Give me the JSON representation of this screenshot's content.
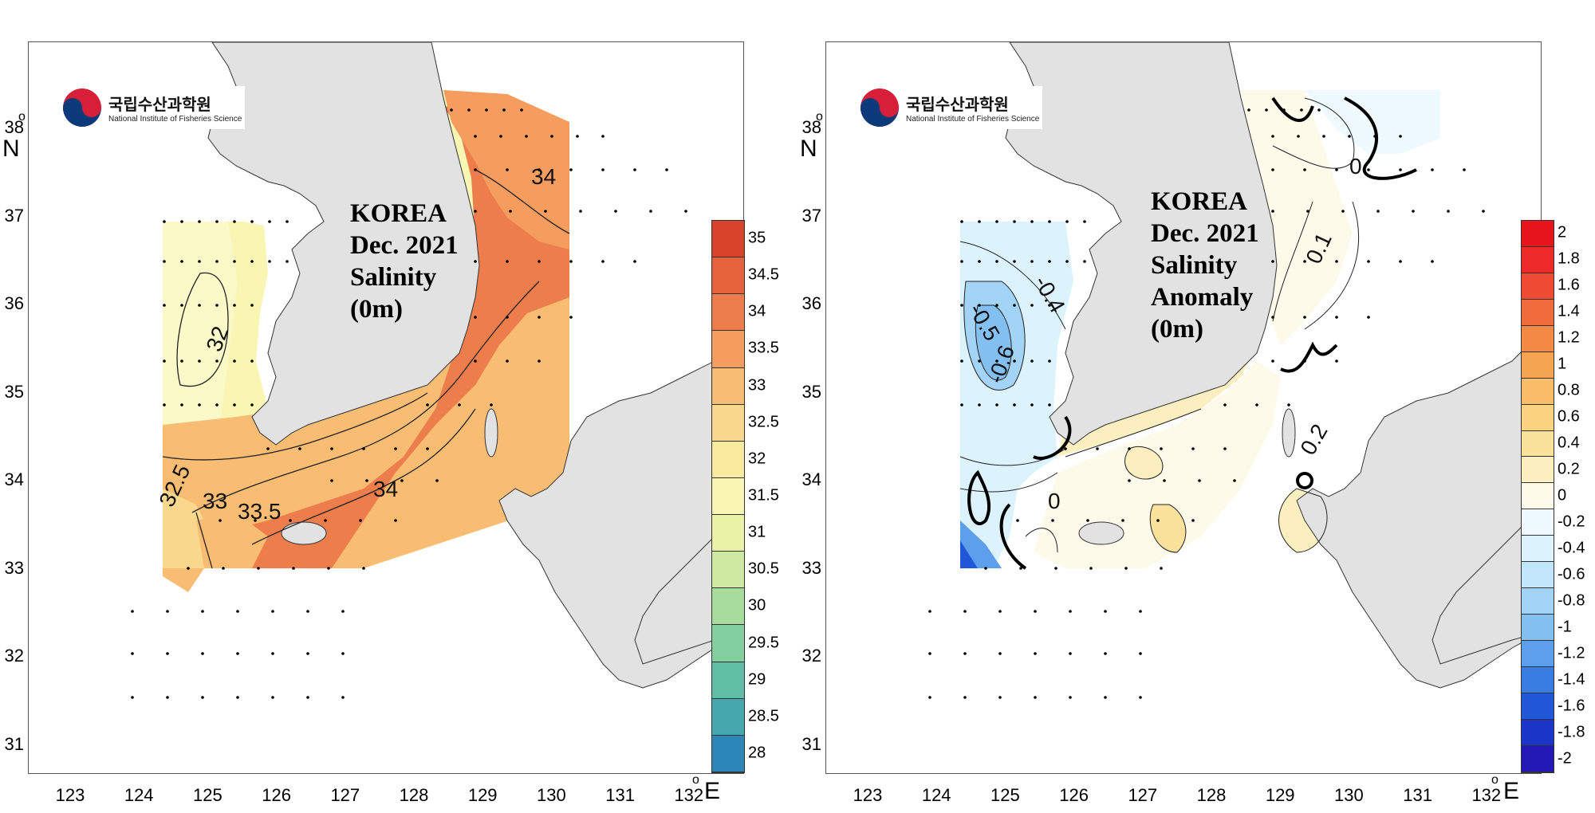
{
  "panels": [
    {
      "id": "salinity",
      "logo": {
        "name_ko": "국립수산과학원",
        "name_en": "National Institute of Fisheries Science"
      },
      "title_lines": [
        "KOREA",
        "Dec. 2021",
        "Salinity",
        "(0m)"
      ],
      "x_ticks": [
        "123",
        "124",
        "125",
        "126",
        "127",
        "128",
        "129",
        "130",
        "131",
        "132"
      ],
      "y_ticks": [
        "38",
        "37",
        "36",
        "35",
        "34",
        "33",
        "32",
        "31"
      ],
      "x_unit": "E",
      "y_unit": "N",
      "degree_symbol": "o",
      "colorbar": {
        "labels": [
          "35",
          "34.5",
          "34",
          "33.5",
          "33",
          "32.5",
          "32",
          "31.5",
          "31",
          "30.5",
          "30",
          "29.5",
          "29",
          "28.5",
          "28"
        ],
        "colors": [
          "#d9432c",
          "#e5623b",
          "#ee7d4c",
          "#f59c5f",
          "#f8bd73",
          "#f9d78c",
          "#f9ea9f",
          "#f9f6b4",
          "#e9f3a8",
          "#cfe9a3",
          "#a8dc9d",
          "#84cfa0",
          "#60bea5",
          "#45a8ad",
          "#2d86b8"
        ]
      },
      "contour_labels": [
        "34",
        "32",
        "32.5",
        "33",
        "33.5",
        "34"
      ]
    },
    {
      "id": "anomaly",
      "logo": {
        "name_ko": "국립수산과학원",
        "name_en": "National Institute of Fisheries Science"
      },
      "title_lines": [
        "KOREA",
        "Dec. 2021",
        "Salinity",
        "Anomaly",
        "(0m)"
      ],
      "x_ticks": [
        "123",
        "124",
        "125",
        "126",
        "127",
        "128",
        "129",
        "130",
        "131",
        "132"
      ],
      "y_ticks": [
        "38",
        "37",
        "36",
        "35",
        "34",
        "33",
        "32",
        "31"
      ],
      "x_unit": "E",
      "y_unit": "N",
      "degree_symbol": "o",
      "colorbar": {
        "labels": [
          "2",
          "1.8",
          "1.6",
          "1.4",
          "1.2",
          "1",
          "0.8",
          "0.6",
          "0.4",
          "0.2",
          "0",
          "-0.2",
          "-0.4",
          "-0.6",
          "-0.8",
          "-1",
          "-1.2",
          "-1.4",
          "-1.6",
          "-1.8",
          "-2"
        ],
        "colors": [
          "#e8141c",
          "#ec2a2a",
          "#ef4b34",
          "#f06c3d",
          "#f28a46",
          "#f5a552",
          "#f8bd66",
          "#fad280",
          "#fbe29c",
          "#fcefbf",
          "#fefaea",
          "#eefaff",
          "#dcf3fd",
          "#c1e6fa",
          "#a3d4f6",
          "#84bff1",
          "#5d9fea",
          "#3a7de2",
          "#2158d8",
          "#1c35c9",
          "#2418b4"
        ]
      },
      "contour_labels": [
        "0",
        "0.1",
        "-0.5",
        "-0.4",
        "-0.6",
        "0.2",
        "0"
      ]
    }
  ]
}
